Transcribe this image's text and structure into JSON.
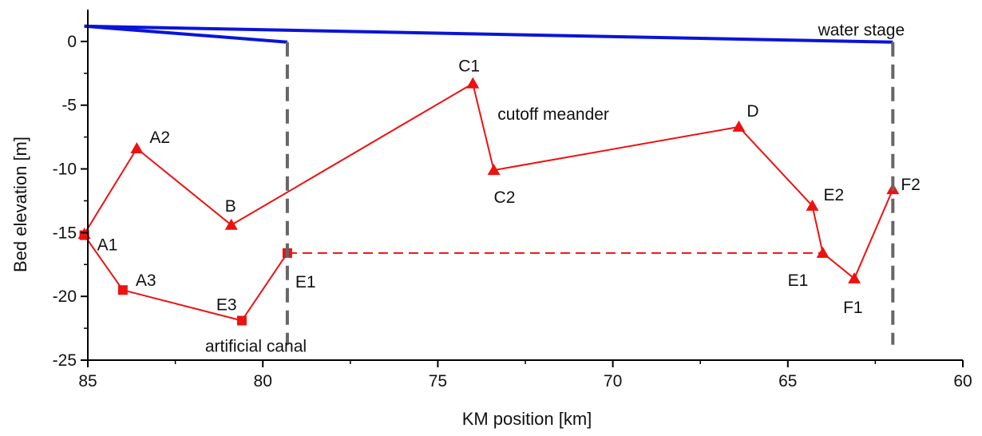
{
  "chart_data": {
    "type": "line",
    "title": "",
    "xlabel": "KM position [km]",
    "ylabel": "Bed elevation [m]",
    "xlim": [
      85,
      60
    ],
    "ylim": [
      -25,
      2.5
    ],
    "x_reversed": true,
    "xticks": [
      85,
      80,
      75,
      70,
      65,
      60
    ],
    "yticks": [
      0,
      -5,
      -10,
      -15,
      -20,
      -25
    ],
    "grid": false,
    "legend": "none",
    "annotations": [
      {
        "text": "water stage",
        "x": 62.9,
        "y": 0.9
      },
      {
        "text": "cutoff meander",
        "x": 71.7,
        "y": -5.7
      },
      {
        "text": "artificial canal",
        "x": 80.2,
        "y": -23.9
      }
    ],
    "series": [
      {
        "id": "water-stage-main",
        "color": "#0a14d8",
        "style": "solid",
        "x": [
          85.1,
          62.0
        ],
        "y": [
          1.2,
          -0.05
        ]
      },
      {
        "id": "water-stage-canal",
        "color": "#0a14d8",
        "style": "solid",
        "x": [
          85.1,
          79.3
        ],
        "y": [
          1.2,
          -0.05
        ]
      },
      {
        "id": "cutoff-meander-bed",
        "color": "#ee1111",
        "marker": "triangle",
        "style": "solid",
        "x": [
          85.1,
          83.6,
          80.9,
          74.0,
          73.4,
          66.4,
          64.3,
          64.0,
          63.1,
          62.0
        ],
        "y": [
          -15.1,
          -8.4,
          -14.4,
          -3.3,
          -10.1,
          -6.7,
          -12.9,
          -16.6,
          -18.6,
          -11.6
        ],
        "labels": [
          "",
          "A2",
          "B",
          "C1",
          "C2",
          "D",
          "E2",
          "",
          "F1",
          "F2"
        ]
      },
      {
        "id": "artificial-canal-bed",
        "color": "#ee1111",
        "marker": "square",
        "style": "solid",
        "x": [
          85.1,
          84.0,
          80.6,
          79.3
        ],
        "y": [
          -15.2,
          -19.5,
          -21.9,
          -16.6
        ],
        "labels": [
          "A1",
          "A3",
          "E3",
          "E1"
        ]
      },
      {
        "id": "canal-junction-link",
        "color": "#ee1111",
        "style": "dashed",
        "x": [
          79.3,
          64.0
        ],
        "y": [
          -16.6,
          -16.6
        ],
        "labels": [
          "",
          "E1"
        ]
      },
      {
        "id": "junction-marker-left",
        "color": "#666666",
        "style": "dashed",
        "x": [
          79.3,
          79.3
        ],
        "y": [
          -0.05,
          -23.8
        ]
      },
      {
        "id": "junction-marker-right",
        "color": "#666666",
        "style": "dashed",
        "x": [
          62.0,
          62.0
        ],
        "y": [
          -0.05,
          -23.8
        ]
      }
    ]
  }
}
